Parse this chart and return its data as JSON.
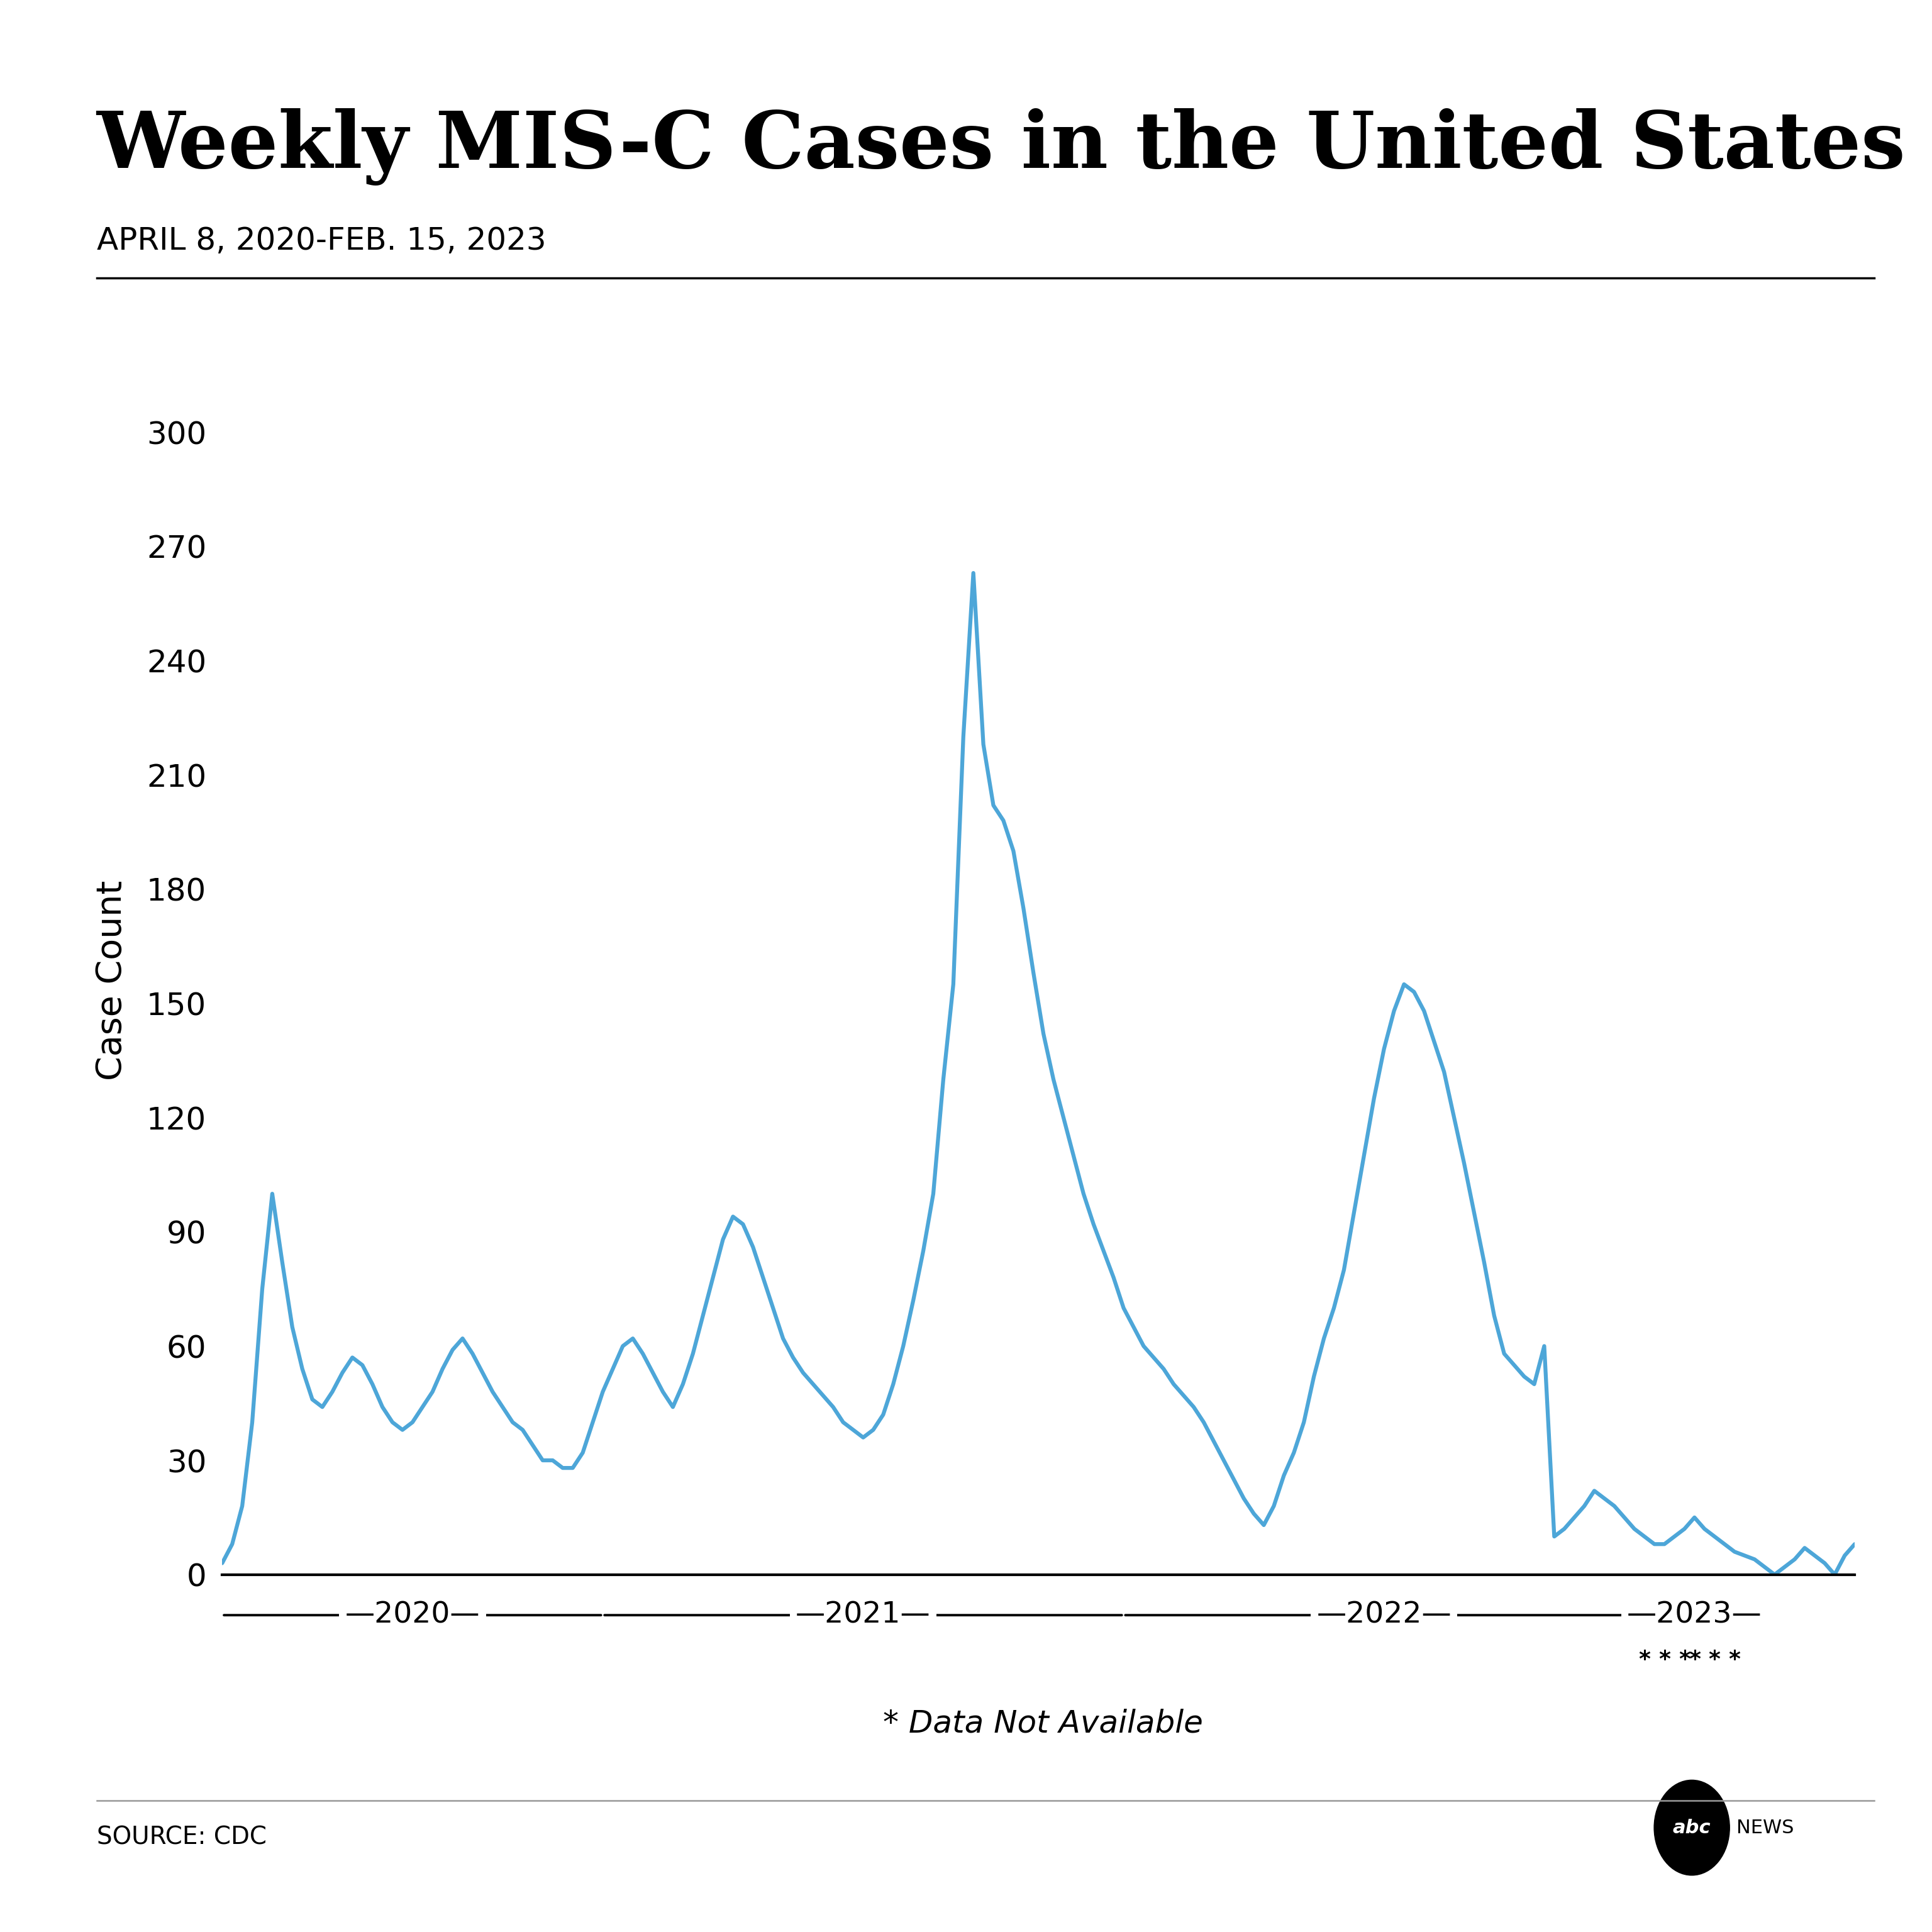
{
  "title": "Weekly MIS-C Cases in the United States",
  "subtitle": "APRIL 8, 2020-FEB. 15, 2023",
  "ylabel": "Case Count",
  "xlabel_note": "* Data Not Available",
  "source": "SOURCE: CDC",
  "line_color": "#4da6d8",
  "background_color": "#ffffff",
  "title_fontsize": 90,
  "subtitle_fontsize": 36,
  "ylabel_fontsize": 40,
  "tick_fontsize": 36,
  "year_label_fontsize": 34,
  "note_fontsize": 36,
  "source_fontsize": 28,
  "yticks": [
    0,
    30,
    60,
    90,
    120,
    150,
    180,
    210,
    240,
    270,
    300
  ],
  "ylim": [
    0,
    312
  ],
  "year_boundaries_weeks": [
    0,
    38,
    90,
    142,
    152
  ],
  "year_labels": [
    "2020",
    "2021",
    "2022",
    "2023"
  ],
  "star_week_positions": [
    142,
    144,
    146,
    147,
    149,
    151
  ],
  "values": [
    3,
    8,
    18,
    40,
    75,
    100,
    82,
    65,
    54,
    46,
    44,
    48,
    53,
    57,
    55,
    50,
    44,
    40,
    38,
    40,
    44,
    48,
    54,
    59,
    62,
    58,
    53,
    48,
    44,
    40,
    38,
    34,
    30,
    30,
    28,
    28,
    32,
    40,
    48,
    54,
    60,
    62,
    58,
    53,
    48,
    44,
    50,
    58,
    68,
    78,
    88,
    94,
    92,
    86,
    78,
    70,
    62,
    57,
    53,
    50,
    47,
    44,
    40,
    38,
    36,
    38,
    42,
    50,
    60,
    72,
    85,
    100,
    130,
    155,
    220,
    263,
    218,
    202,
    198,
    190,
    175,
    158,
    142,
    130,
    120,
    110,
    100,
    92,
    85,
    78,
    70,
    65,
    60,
    57,
    54,
    50,
    47,
    44,
    40,
    35,
    30,
    25,
    20,
    16,
    13,
    18,
    26,
    32,
    40,
    52,
    62,
    70,
    80,
    95,
    110,
    125,
    138,
    148,
    155,
    153,
    148,
    140,
    132,
    120,
    108,
    95,
    82,
    68,
    58,
    55,
    52,
    50,
    60,
    10,
    12,
    15,
    18,
    22,
    20,
    18,
    15,
    12,
    10,
    8,
    8,
    10,
    12,
    15,
    12,
    10,
    8,
    6,
    5,
    4,
    2,
    0,
    2,
    4,
    7,
    5,
    3,
    0,
    5,
    8
  ]
}
